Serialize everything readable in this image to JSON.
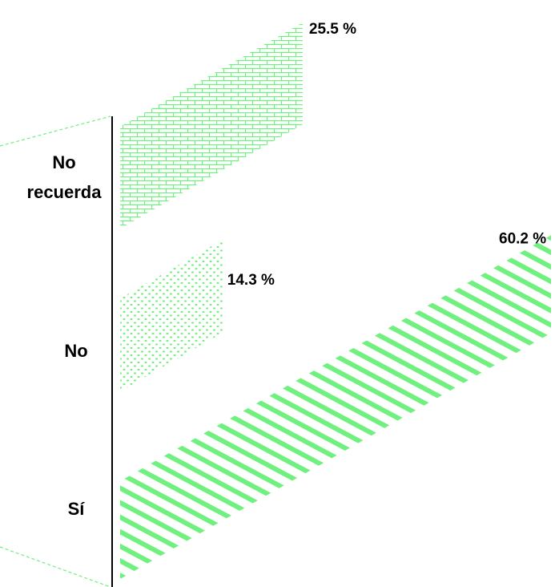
{
  "chart_data": {
    "type": "bar",
    "orientation": "horizontal",
    "style": "3d-perspective",
    "categories": [
      "No recuerda",
      "No",
      "Sí"
    ],
    "values": [
      25.5,
      14.3,
      60.2
    ],
    "value_labels": [
      "25.5 %",
      "14.3 %",
      "60.2 %"
    ],
    "unit": "%",
    "xlim": [
      0,
      60.2
    ],
    "grid": false,
    "legend": "none",
    "bar_color": "#6ff07f",
    "fills": [
      "brick",
      "dots",
      "diagonal-stripes"
    ]
  }
}
